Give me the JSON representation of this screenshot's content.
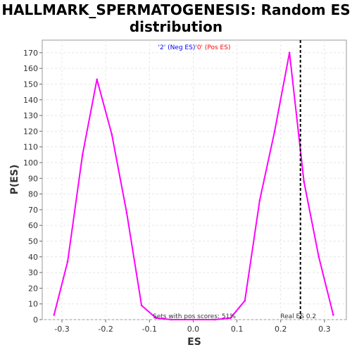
{
  "chart_data": {
    "type": "line",
    "title_line1": "HALLMARK_SPERMATOGENESIS: Random ES",
    "title_line2": "distribution",
    "xlabel": "ES",
    "ylabel": "P(ES)",
    "xlim": [
      -0.345,
      0.35
    ],
    "ylim": [
      0,
      178
    ],
    "x_ticks": [
      "-0.3",
      "-0.2",
      "-0.1",
      "0.0",
      "0.1",
      "0.2",
      "0.3"
    ],
    "x_tick_values": [
      -0.3,
      -0.2,
      -0.1,
      0.0,
      0.1,
      0.2,
      0.3
    ],
    "y_ticks": [
      "0",
      "10",
      "20",
      "30",
      "40",
      "50",
      "60",
      "70",
      "80",
      "90",
      "100",
      "110",
      "120",
      "130",
      "140",
      "150",
      "160",
      "170"
    ],
    "y_tick_values": [
      0,
      10,
      20,
      30,
      40,
      50,
      60,
      70,
      80,
      90,
      100,
      110,
      120,
      130,
      140,
      150,
      160,
      170
    ],
    "grid": true,
    "legend": {
      "placement": "top-center",
      "entries": [
        {
          "label": "'2' (Neg ES)",
          "color": "#0000ff"
        },
        {
          "label": "'0' (Pos ES)",
          "color": "#ff0000"
        }
      ]
    },
    "series": [
      {
        "color": "#ff00ff",
        "x": [
          -0.318,
          -0.287,
          -0.253,
          -0.22,
          -0.186,
          -0.152,
          -0.118,
          -0.085,
          -0.05,
          0.05,
          0.085,
          0.118,
          0.152,
          0.186,
          0.22,
          0.253,
          0.287,
          0.32
        ],
        "y": [
          3,
          37,
          105,
          153,
          118,
          68,
          9,
          1,
          0,
          0,
          1,
          12,
          76,
          120,
          170,
          88,
          40,
          3
        ]
      }
    ],
    "real_es": {
      "value": 0.245,
      "label": "Real ES 0.2",
      "color": "#000000"
    },
    "annotation": "Sets with pos scores: 51%"
  }
}
